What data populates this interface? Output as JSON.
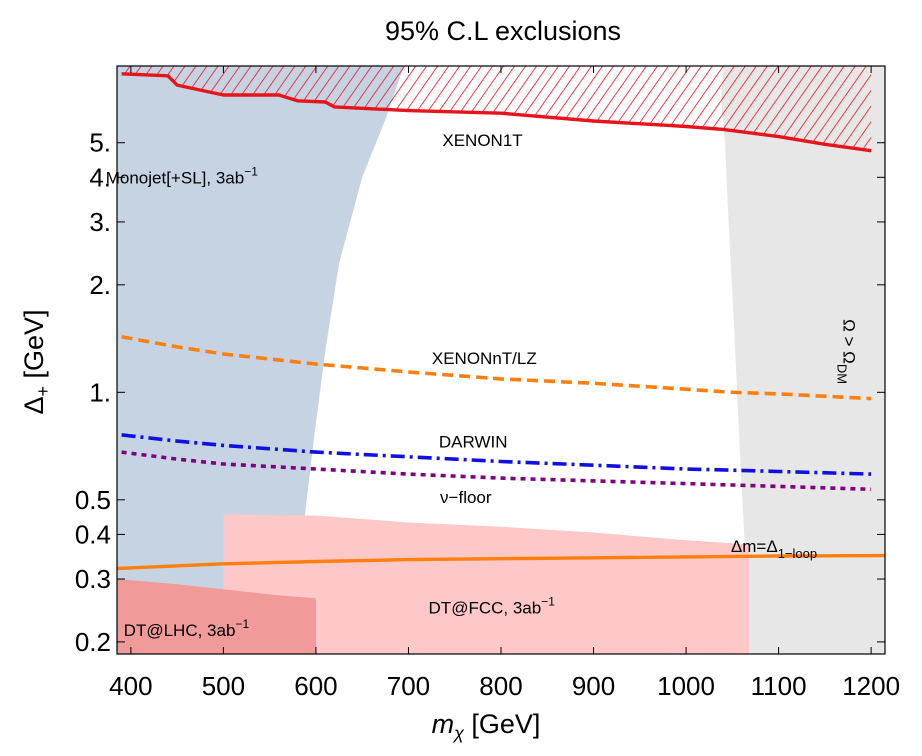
{
  "chart_data": {
    "type": "line",
    "title": "95% C.L exclusions",
    "xlabel": {
      "var": "m",
      "sub": "χ",
      "unit": " [GeV]"
    },
    "ylabel": {
      "var": "Δ",
      "sub": "+",
      "unit": " [GeV]"
    },
    "xlim": [
      385,
      1215
    ],
    "ylim": [
      0.185,
      8.2
    ],
    "yscale": "log",
    "x_ticks": [
      400,
      500,
      600,
      700,
      800,
      900,
      1000,
      1100,
      1200
    ],
    "x_tick_labels": [
      "400",
      "500",
      "600",
      "700",
      "800",
      "900",
      "1000",
      "1100",
      "1200"
    ],
    "y_ticks": [
      0.2,
      0.3,
      0.4,
      0.5,
      1,
      2,
      3,
      4,
      5
    ],
    "y_tick_labels": [
      "0.2",
      "0.3",
      "0.4",
      "0.5",
      "1.",
      "2.",
      "3.",
      "4.",
      "5."
    ],
    "grid": false,
    "regions": [
      {
        "name": "Monojet[+SL], 3ab⁻¹",
        "color": "#c6d3e3",
        "boundary": [
          [
            385,
            8.2
          ],
          [
            695,
            8.2
          ],
          [
            675,
            5.8
          ],
          [
            650,
            4.0
          ],
          [
            625,
            2.3
          ],
          [
            610,
            1.3
          ],
          [
            598,
            0.75
          ],
          [
            588,
            0.45
          ],
          [
            580,
            0.3
          ],
          [
            574,
            0.185
          ],
          [
            385,
            0.185
          ]
        ]
      },
      {
        "name": "Ω > Ω_DM",
        "color": "#e5e5e5",
        "boundary": [
          [
            1040,
            8.2
          ],
          [
            1215,
            8.2
          ],
          [
            1215,
            0.185
          ],
          [
            1068,
            0.185
          ],
          [
            1064,
            0.35
          ],
          [
            1058,
            0.7
          ],
          [
            1052,
            1.5
          ],
          [
            1046,
            3.0
          ],
          [
            1042,
            5.0
          ],
          [
            1038,
            6.5
          ]
        ]
      },
      {
        "name": "DT@FCC, 3ab⁻¹",
        "color": "#ffc8c8",
        "boundary": [
          [
            500,
            0.185
          ],
          [
            500,
            0.455
          ],
          [
            600,
            0.452
          ],
          [
            700,
            0.432
          ],
          [
            800,
            0.42
          ],
          [
            900,
            0.405
          ],
          [
            1000,
            0.385
          ],
          [
            1068,
            0.375
          ],
          [
            1068,
            0.185
          ]
        ]
      },
      {
        "name": "DT@LHC, 3ab⁻¹",
        "color": "#f09a9a",
        "boundary": [
          [
            385,
            0.185
          ],
          [
            385,
            0.3
          ],
          [
            450,
            0.29
          ],
          [
            560,
            0.27
          ],
          [
            600,
            0.265
          ],
          [
            600,
            0.185
          ]
        ]
      }
    ],
    "series": [
      {
        "name": "XENON1T",
        "color": "#e8141c",
        "dash": "solid",
        "hatched": true,
        "points": [
          [
            390,
            7.8
          ],
          [
            440,
            7.7
          ],
          [
            450,
            7.25
          ],
          [
            500,
            6.8
          ],
          [
            560,
            6.8
          ],
          [
            580,
            6.55
          ],
          [
            610,
            6.5
          ],
          [
            620,
            6.3
          ],
          [
            700,
            6.15
          ],
          [
            800,
            6.05
          ],
          [
            900,
            5.75
          ],
          [
            1000,
            5.55
          ],
          [
            1040,
            5.45
          ],
          [
            1100,
            5.2
          ],
          [
            1150,
            4.95
          ],
          [
            1200,
            4.75
          ]
        ]
      },
      {
        "name": "XENONnT/LZ",
        "color": "#ff7f0e",
        "dash": "dashed",
        "points": [
          [
            390,
            1.43
          ],
          [
            450,
            1.34
          ],
          [
            500,
            1.28
          ],
          [
            600,
            1.2
          ],
          [
            700,
            1.14
          ],
          [
            800,
            1.09
          ],
          [
            900,
            1.06
          ],
          [
            1000,
            1.02
          ],
          [
            1050,
            1.0
          ],
          [
            1100,
            0.99
          ],
          [
            1200,
            0.96
          ]
        ]
      },
      {
        "name": "DARWIN",
        "color": "#1010e0",
        "dash": "dashdot",
        "points": [
          [
            390,
            0.76
          ],
          [
            450,
            0.73
          ],
          [
            500,
            0.71
          ],
          [
            600,
            0.68
          ],
          [
            700,
            0.66
          ],
          [
            800,
            0.64
          ],
          [
            900,
            0.625
          ],
          [
            1000,
            0.61
          ],
          [
            1050,
            0.605
          ],
          [
            1100,
            0.6
          ],
          [
            1200,
            0.59
          ]
        ]
      },
      {
        "name": "ν−floor",
        "color": "#800080",
        "dash": "dotted",
        "points": [
          [
            390,
            0.68
          ],
          [
            450,
            0.65
          ],
          [
            500,
            0.63
          ],
          [
            600,
            0.61
          ],
          [
            700,
            0.59
          ],
          [
            800,
            0.575
          ],
          [
            900,
            0.565
          ],
          [
            1000,
            0.555
          ],
          [
            1050,
            0.55
          ],
          [
            1100,
            0.545
          ],
          [
            1200,
            0.535
          ]
        ]
      },
      {
        "name": "Δm=Δ_1-loop",
        "color": "#ff7f0e",
        "dash": "solid",
        "points": [
          [
            385,
            0.321
          ],
          [
            500,
            0.331
          ],
          [
            600,
            0.336
          ],
          [
            700,
            0.34
          ],
          [
            800,
            0.342
          ],
          [
            900,
            0.344
          ],
          [
            1000,
            0.346
          ],
          [
            1100,
            0.348
          ],
          [
            1215,
            0.349
          ]
        ]
      }
    ],
    "annotations": [
      {
        "text": "XENON1T",
        "x": 780,
        "y": 4.9
      },
      {
        "text": "Monojet[+SL], 3ab",
        "sup": "−1",
        "x": 455,
        "y": 3.85
      },
      {
        "text": "XENONnT/LZ",
        "x": 782,
        "y": 1.2
      },
      {
        "text": "DARWIN",
        "x": 770,
        "y": 0.7
      },
      {
        "text": "ν−floor",
        "x": 762,
        "y": 0.49
      },
      {
        "text": "Δm=Δ",
        "sub": "1−loop",
        "x": 1095,
        "y": 0.357
      },
      {
        "text": "DT@FCC, 3ab",
        "sup": "−1",
        "x": 790,
        "y": 0.24
      },
      {
        "text": "DT@LHC, 3ab",
        "sup": "−1",
        "x": 460,
        "y": 0.208
      },
      {
        "text": "Ω > Ω",
        "sub": "DM",
        "x": 1170,
        "y": 1.3,
        "rotate": 90
      }
    ]
  }
}
